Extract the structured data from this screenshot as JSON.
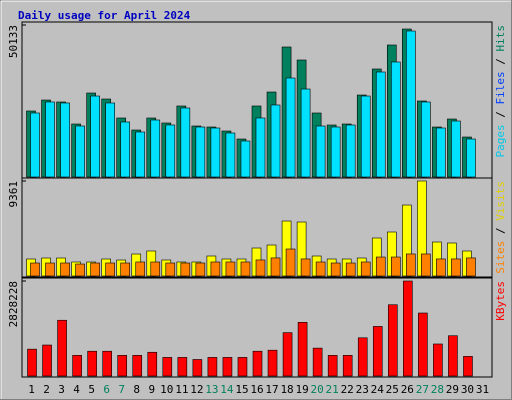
{
  "chart_data": [
    {
      "type": "bar",
      "title": "Daily usage for April 2024",
      "ylim": [
        0,
        50133
      ],
      "yticks": [
        50133
      ],
      "side_label": [
        {
          "text": "Pages",
          "color": "#00c8e8"
        },
        {
          "text": " / ",
          "color": "#000000"
        },
        {
          "text": "Files",
          "color": "#0040ff"
        },
        {
          "text": " / ",
          "color": "#000000"
        },
        {
          "text": "Hits",
          "color": "#00805c"
        }
      ],
      "series": [
        {
          "name": "Hits",
          "color": "#00805c",
          "values": [
            21770,
            25390,
            24740,
            17480,
            27700,
            25720,
            19460,
            15500,
            19460,
            17810,
            23420,
            16820,
            16490,
            15170,
            12530,
            23420,
            28030,
            42880,
            38590,
            21110,
            17150,
            17480,
            27040,
            35620,
            43540,
            48810,
            25070,
            16490,
            19130,
            13190,
            null
          ]
        },
        {
          "name": "Pages",
          "color": "#00e0ff",
          "values": [
            21110,
            24740,
            24410,
            16820,
            26710,
            24410,
            18140,
            14840,
            18800,
            17150,
            22760,
            16490,
            16160,
            14510,
            11870,
            19460,
            23750,
            32650,
            29020,
            16820,
            16490,
            17150,
            26710,
            34630,
            37930,
            48150,
            24740,
            16160,
            18470,
            12530,
            null
          ]
        }
      ]
    },
    {
      "type": "bar",
      "ylim": [
        0,
        9361
      ],
      "yticks": [
        9361
      ],
      "side_label": [
        {
          "text": "Sites",
          "color": "#ff8000"
        },
        {
          "text": " / ",
          "color": "#000000"
        },
        {
          "text": "Visits",
          "color": "#e0d000"
        }
      ],
      "series": [
        {
          "name": "Visits",
          "color": "#ffff00",
          "values": [
            1675,
            1773,
            1773,
            1379,
            1379,
            1675,
            1576,
            2167,
            2463,
            1576,
            1379,
            1379,
            1970,
            1675,
            1675,
            2758,
            3054,
            5418,
            5319,
            1970,
            1675,
            1675,
            1773,
            3743,
            4334,
            6994,
            9361,
            3349,
            3251,
            2463,
            null
          ]
        },
        {
          "name": "Sites",
          "color": "#ff8000",
          "values": [
            1280,
            1280,
            1280,
            1180,
            1280,
            1280,
            1280,
            1380,
            1380,
            1280,
            1280,
            1280,
            1380,
            1380,
            1380,
            1580,
            1780,
            2660,
            1680,
            1380,
            1280,
            1280,
            1380,
            1870,
            1870,
            2170,
            2170,
            1680,
            1680,
            1780,
            null
          ]
        }
      ]
    },
    {
      "type": "bar",
      "ylim": [
        0,
        2828228
      ],
      "yticks": [
        2828228
      ],
      "side_label": [
        {
          "text": "KBytes",
          "color": "#ff0000"
        }
      ],
      "categories": [
        "1",
        "2",
        "3",
        "4",
        "5",
        "6",
        "7",
        "8",
        "9",
        "10",
        "11",
        "12",
        "13",
        "14",
        "15",
        "16",
        "17",
        "18",
        "19",
        "20",
        "21",
        "22",
        "23",
        "24",
        "25",
        "26",
        "27",
        "28",
        "29",
        "30",
        "31"
      ],
      "weekend": [
        5,
        6,
        12,
        13,
        19,
        20,
        26,
        27
      ],
      "weekend_color": "#00805c",
      "series": [
        {
          "name": "KBytes",
          "color": "#ff0000",
          "values": [
            799290,
            922260,
            1660070,
            614840,
            737810,
            737810,
            614840,
            614840,
            707070,
            553360,
            553360,
            491870,
            553360,
            553360,
            553360,
            737810,
            768550,
            1291160,
            1598580,
            830030,
            614840,
            614840,
            1137450,
            1475620,
            2121200,
            2828228,
            1875260,
            953000,
            1198940,
            584100,
            null
          ]
        }
      ]
    }
  ]
}
